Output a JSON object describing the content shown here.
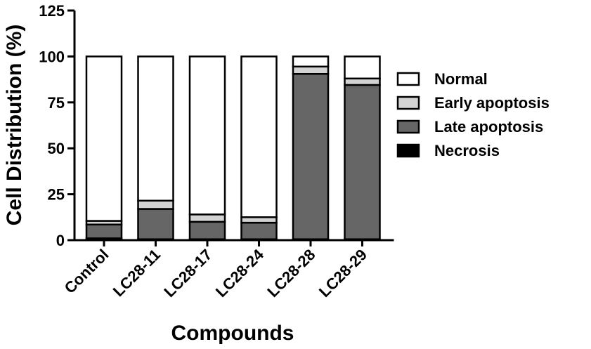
{
  "chart_data": {
    "type": "bar",
    "stacked": true,
    "title": "",
    "xlabel": "Compounds",
    "ylabel": "Cell Distribution (%)",
    "ylim": [
      0,
      125
    ],
    "yticks": [
      0,
      25,
      50,
      75,
      100,
      125
    ],
    "categories": [
      "Control",
      "LC28-11",
      "LC28-17",
      "LC28-24",
      "LC28-28",
      "LC28-29"
    ],
    "series": [
      {
        "name": "Necrosis",
        "color": "#000000",
        "values": [
          1,
          0.5,
          0.5,
          0.5,
          0.5,
          0.5
        ]
      },
      {
        "name": "Late apoptosis",
        "color": "#666666",
        "values": [
          7.5,
          16.5,
          9.5,
          9,
          90,
          84
        ]
      },
      {
        "name": "Early apoptosis",
        "color": "#d3d3d3",
        "values": [
          2,
          4.5,
          4,
          3,
          4,
          3.5
        ]
      },
      {
        "name": "Normal",
        "color": "#ffffff",
        "values": [
          89.5,
          78.5,
          86,
          87.5,
          5.5,
          12
        ]
      }
    ],
    "legend": {
      "position": "right",
      "order": [
        "Normal",
        "Early apoptosis",
        "Late apoptosis",
        "Necrosis"
      ]
    },
    "grid": false
  }
}
